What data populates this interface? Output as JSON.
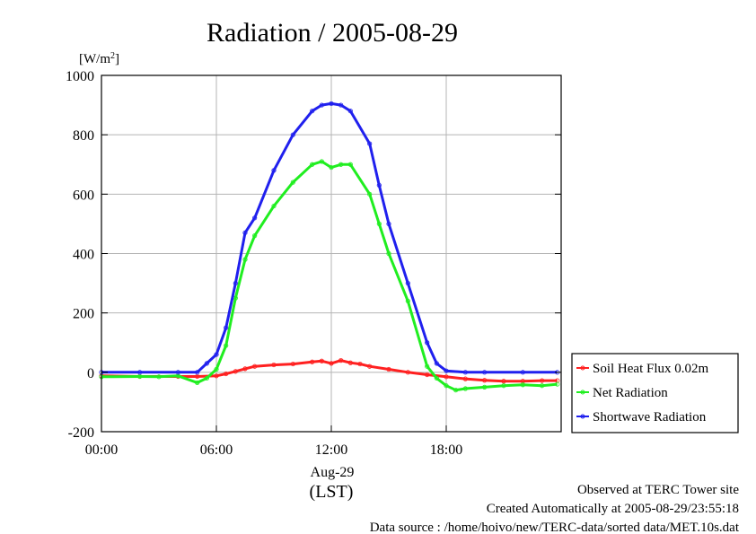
{
  "chart_data": {
    "type": "line",
    "title": "Radiation / 2005-08-29",
    "ylabel_unit_prefix": "[W/m",
    "ylabel_unit_sup": "2",
    "ylabel_unit_suffix": "]",
    "xlabel_date": "Aug-29",
    "xlabel": "(LST)",
    "ylim": [
      -200,
      1000
    ],
    "xlim_hours": [
      0,
      24
    ],
    "yticks": [
      {
        "value": 1000,
        "label": "1000"
      },
      {
        "value": 800,
        "label": "800"
      },
      {
        "value": 600,
        "label": "600"
      },
      {
        "value": 400,
        "label": "400"
      },
      {
        "value": 200,
        "label": "200"
      },
      {
        "value": 0,
        "label": "0"
      },
      {
        "value": -200,
        "label": "-200"
      }
    ],
    "xticks": [
      {
        "value": 0,
        "label": "00:00"
      },
      {
        "value": 6,
        "label": "06:00"
      },
      {
        "value": 12,
        "label": "12:00"
      },
      {
        "value": 18,
        "label": "18:00"
      }
    ],
    "grid": true,
    "legend_position": "right",
    "series": [
      {
        "name": "Soil Heat Flux 0.02m",
        "color": "#ff2020",
        "x": [
          0,
          2,
          4,
          5,
          6,
          6.5,
          7,
          7.5,
          8,
          9,
          10,
          11,
          11.5,
          12,
          12.5,
          13,
          13.5,
          14,
          15,
          16,
          17,
          18,
          19,
          20,
          21,
          22,
          23,
          23.8
        ],
        "y": [
          -12,
          -14,
          -14,
          -14,
          -12,
          -5,
          3,
          12,
          20,
          25,
          28,
          35,
          38,
          30,
          40,
          32,
          28,
          20,
          10,
          0,
          -8,
          -15,
          -22,
          -27,
          -30,
          -30,
          -28,
          -28
        ]
      },
      {
        "name": "Net Radiation",
        "color": "#20ee20",
        "x": [
          0,
          2,
          3,
          4,
          5,
          5.5,
          6,
          6.5,
          7,
          7.5,
          8,
          9,
          10,
          11,
          11.5,
          12,
          12.5,
          13,
          14,
          14.5,
          15,
          16,
          17,
          17.5,
          18,
          18.5,
          19,
          20,
          21,
          22,
          23,
          23.8
        ],
        "y": [
          -15,
          -14,
          -15,
          -12,
          -35,
          -20,
          10,
          90,
          250,
          380,
          460,
          560,
          640,
          700,
          710,
          690,
          700,
          700,
          600,
          500,
          400,
          240,
          20,
          -20,
          -45,
          -60,
          -55,
          -50,
          -45,
          -42,
          -45,
          -40
        ]
      },
      {
        "name": "Shortwave Radiation",
        "color": "#2020ee",
        "x": [
          0,
          2,
          4,
          5,
          5.5,
          6,
          6.5,
          7,
          7.5,
          8,
          9,
          10,
          11,
          11.5,
          12,
          12.5,
          13,
          14,
          14.5,
          15,
          16,
          17,
          17.5,
          18,
          19,
          20,
          22,
          23.8
        ],
        "y": [
          0,
          0,
          0,
          0,
          30,
          60,
          150,
          300,
          470,
          520,
          680,
          800,
          880,
          900,
          905,
          900,
          880,
          770,
          630,
          500,
          300,
          100,
          30,
          5,
          0,
          0,
          0,
          0
        ]
      }
    ]
  },
  "footer": {
    "line1": "Observed at TERC Tower site",
    "line2": "Created Automatically at 2005-08-29/23:55:18",
    "line3": "Data source : /home/hoivo/new/TERC-data/sorted  data/MET.10s.dat"
  }
}
